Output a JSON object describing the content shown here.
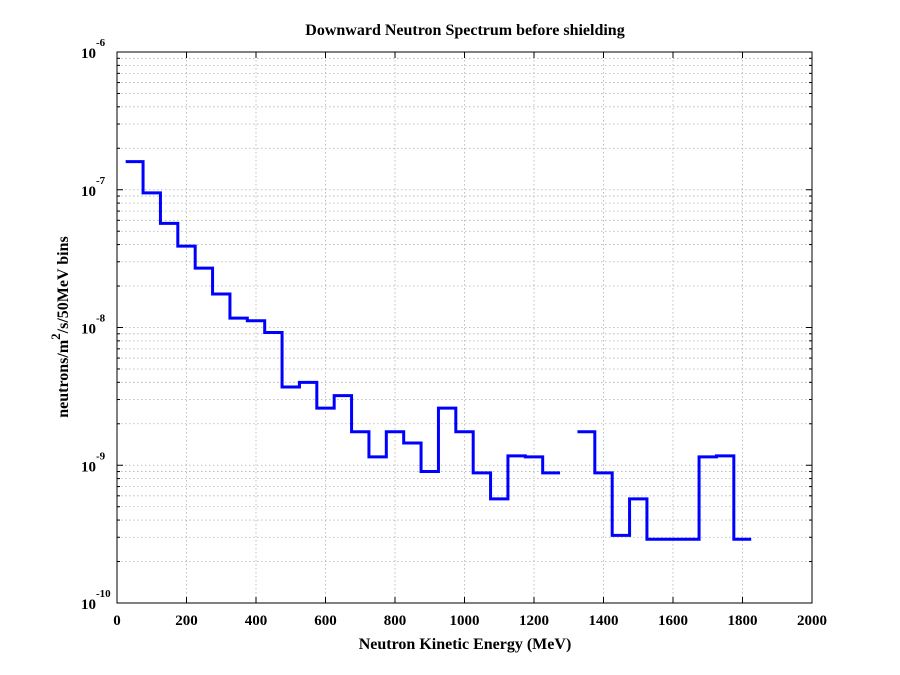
{
  "chart_data": {
    "type": "line",
    "title": "Downward Neutron Spectrum before shielding",
    "xlabel": "Neutron Kinetic Energy (MeV)",
    "ylabel": {
      "prefix": "neutrons/m",
      "superscript": "2",
      "suffix": "/s/50MeV bins"
    },
    "xlim": [
      0,
      2000
    ],
    "ylim": [
      1e-10,
      1e-06
    ],
    "y_scale": "log",
    "grid": true,
    "x_ticks": [
      0,
      200,
      400,
      600,
      800,
      1000,
      1200,
      1400,
      1600,
      1800,
      2000
    ],
    "x_tick_labels": [
      "0",
      "200",
      "400",
      "600",
      "800",
      "1000",
      "1200",
      "1400",
      "1600",
      "1800",
      "2000"
    ],
    "y_ticks": [
      1e-10,
      1e-09,
      1e-08,
      1e-07,
      1e-06
    ],
    "y_tick_labels": [
      {
        "base": "10",
        "exp": "-10"
      },
      {
        "base": "10",
        "exp": "-9"
      },
      {
        "base": "10",
        "exp": "-8"
      },
      {
        "base": "10",
        "exp": "-7"
      },
      {
        "base": "10",
        "exp": "-6"
      }
    ],
    "series": [
      {
        "color": "#0000ff",
        "style": "stairs",
        "bins": [
          {
            "x0": 25,
            "x1": 75,
            "y": 1.6e-07
          },
          {
            "x0": 75,
            "x1": 125,
            "y": 9.5e-08
          },
          {
            "x0": 125,
            "x1": 175,
            "y": 5.7e-08
          },
          {
            "x0": 175,
            "x1": 225,
            "y": 3.9e-08
          },
          {
            "x0": 225,
            "x1": 275,
            "y": 2.7e-08
          },
          {
            "x0": 275,
            "x1": 325,
            "y": 1.75e-08
          },
          {
            "x0": 325,
            "x1": 375,
            "y": 1.17e-08
          },
          {
            "x0": 375,
            "x1": 425,
            "y": 1.12e-08
          },
          {
            "x0": 425,
            "x1": 475,
            "y": 9.2e-09
          },
          {
            "x0": 475,
            "x1": 525,
            "y": 3.7e-09
          },
          {
            "x0": 525,
            "x1": 575,
            "y": 4e-09
          },
          {
            "x0": 575,
            "x1": 625,
            "y": 2.6e-09
          },
          {
            "x0": 625,
            "x1": 675,
            "y": 3.2e-09
          },
          {
            "x0": 675,
            "x1": 725,
            "y": 1.75e-09
          },
          {
            "x0": 725,
            "x1": 775,
            "y": 1.15e-09
          },
          {
            "x0": 775,
            "x1": 825,
            "y": 1.75e-09
          },
          {
            "x0": 825,
            "x1": 875,
            "y": 1.45e-09
          },
          {
            "x0": 875,
            "x1": 925,
            "y": 9e-10
          },
          {
            "x0": 925,
            "x1": 975,
            "y": 2.6e-09
          },
          {
            "x0": 975,
            "x1": 1025,
            "y": 1.75e-09
          },
          {
            "x0": 1025,
            "x1": 1075,
            "y": 8.8e-10
          },
          {
            "x0": 1075,
            "x1": 1125,
            "y": 5.7e-10
          },
          {
            "x0": 1125,
            "x1": 1175,
            "y": 1.17e-09
          },
          {
            "x0": 1175,
            "x1": 1225,
            "y": 1.15e-09
          },
          {
            "x0": 1225,
            "x1": 1275,
            "y": 8.8e-10
          },
          {
            "x0": 1325,
            "x1": 1375,
            "y": 1.75e-09
          },
          {
            "x0": 1375,
            "x1": 1425,
            "y": 8.8e-10
          },
          {
            "x0": 1425,
            "x1": 1475,
            "y": 3.1e-10
          },
          {
            "x0": 1475,
            "x1": 1525,
            "y": 5.7e-10
          },
          {
            "x0": 1525,
            "x1": 1575,
            "y": 2.9e-10
          },
          {
            "x0": 1575,
            "x1": 1625,
            "y": 2.9e-10
          },
          {
            "x0": 1625,
            "x1": 1675,
            "y": 2.9e-10
          },
          {
            "x0": 1675,
            "x1": 1725,
            "y": 1.15e-09
          },
          {
            "x0": 1725,
            "x1": 1775,
            "y": 1.17e-09
          },
          {
            "x0": 1775,
            "x1": 1825,
            "y": 2.9e-10
          }
        ]
      }
    ]
  }
}
